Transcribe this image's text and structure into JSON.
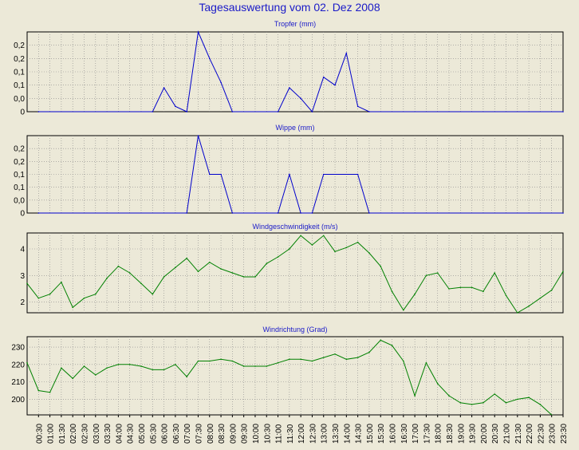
{
  "title": "Tagesauswertung vom 02. Dez 2008",
  "colors": {
    "background": "#ece9d8",
    "title": "#1a1ac8",
    "rain": "#0000cc",
    "wind": "#008000",
    "grid": "#888888"
  },
  "chart_data": [
    {
      "type": "line",
      "title": "Tropfer (mm)",
      "color": "#0000cc",
      "ylim": [
        0,
        0.3
      ],
      "yticks": [
        0,
        0.05,
        0.1,
        0.15,
        0.2,
        0.25
      ],
      "ytick_labels": [
        "0",
        "0,0",
        "0,1",
        "0,1",
        "0,2",
        "0,2"
      ],
      "points": [
        [
          0.5,
          0
        ],
        [
          5.5,
          0
        ],
        [
          6,
          0.09
        ],
        [
          6.5,
          0.02
        ],
        [
          7,
          0
        ],
        [
          7.5,
          0.3
        ],
        [
          8,
          0.2
        ],
        [
          8.5,
          0.11
        ],
        [
          9,
          0
        ],
        [
          11,
          0
        ],
        [
          11.5,
          0.09
        ],
        [
          12,
          0.05
        ],
        [
          12.5,
          0
        ],
        [
          13,
          0.13
        ],
        [
          13.5,
          0.1
        ],
        [
          14,
          0.22
        ],
        [
          14.5,
          0.02
        ],
        [
          15,
          0
        ],
        [
          23.5,
          0
        ]
      ]
    },
    {
      "type": "line",
      "title": "Wippe (mm)",
      "color": "#0000cc",
      "ylim": [
        0,
        0.3
      ],
      "yticks": [
        0,
        0.05,
        0.1,
        0.15,
        0.2,
        0.25
      ],
      "ytick_labels": [
        "0",
        "0,0",
        "0,1",
        "0,1",
        "0,2",
        "0,2"
      ],
      "points": [
        [
          0.5,
          0
        ],
        [
          7,
          0
        ],
        [
          7.5,
          0.3
        ],
        [
          8,
          0.15
        ],
        [
          8.5,
          0.15
        ],
        [
          9,
          0
        ],
        [
          11,
          0
        ],
        [
          11.5,
          0.15
        ],
        [
          12,
          0
        ],
        [
          12.5,
          0
        ],
        [
          13,
          0.15
        ],
        [
          14.5,
          0.15
        ],
        [
          15,
          0
        ],
        [
          23.5,
          0
        ]
      ]
    },
    {
      "type": "line",
      "title": "Windgeschwindigkeit (m/s)",
      "color": "#008000",
      "ylim": [
        1.6,
        4.6
      ],
      "yticks": [
        2,
        3,
        4
      ],
      "ytick_labels": [
        "2",
        "3",
        "4"
      ],
      "points": [
        [
          0,
          2.7
        ],
        [
          0.5,
          2.15
        ],
        [
          1,
          2.3
        ],
        [
          1.5,
          2.75
        ],
        [
          2,
          1.8
        ],
        [
          2.5,
          2.15
        ],
        [
          3,
          2.3
        ],
        [
          3.5,
          2.9
        ],
        [
          4,
          3.35
        ],
        [
          4.5,
          3.1
        ],
        [
          5,
          2.7
        ],
        [
          5.5,
          2.3
        ],
        [
          6,
          2.95
        ],
        [
          6.5,
          3.3
        ],
        [
          7,
          3.65
        ],
        [
          7.5,
          3.15
        ],
        [
          8,
          3.5
        ],
        [
          8.5,
          3.25
        ],
        [
          9,
          3.1
        ],
        [
          9.5,
          2.95
        ],
        [
          10,
          2.95
        ],
        [
          10.5,
          3.45
        ],
        [
          11,
          3.7
        ],
        [
          11.5,
          4.0
        ],
        [
          12,
          4.5
        ],
        [
          12.5,
          4.15
        ],
        [
          13,
          4.5
        ],
        [
          13.5,
          3.9
        ],
        [
          14,
          4.05
        ],
        [
          14.5,
          4.25
        ],
        [
          15,
          3.85
        ],
        [
          15.5,
          3.35
        ],
        [
          16,
          2.4
        ],
        [
          16.5,
          1.7
        ],
        [
          17,
          2.3
        ],
        [
          17.5,
          3.0
        ],
        [
          18,
          3.1
        ],
        [
          18.5,
          2.5
        ],
        [
          19,
          2.55
        ],
        [
          19.5,
          2.55
        ],
        [
          20,
          2.4
        ],
        [
          20.5,
          3.1
        ],
        [
          21,
          2.25
        ],
        [
          21.5,
          1.6
        ],
        [
          22,
          1.85
        ],
        [
          22.5,
          2.15
        ],
        [
          23,
          2.45
        ],
        [
          23.5,
          3.15
        ]
      ]
    },
    {
      "type": "line",
      "title": "Windrichtung (Grad)",
      "color": "#008000",
      "ylim": [
        191,
        236
      ],
      "yticks": [
        200,
        210,
        220,
        230
      ],
      "ytick_labels": [
        "200",
        "210",
        "220",
        "230"
      ],
      "points": [
        [
          0,
          221
        ],
        [
          0.5,
          205
        ],
        [
          1,
          204
        ],
        [
          1.5,
          218
        ],
        [
          2,
          212
        ],
        [
          2.5,
          219
        ],
        [
          3,
          214
        ],
        [
          3.5,
          218
        ],
        [
          4,
          220
        ],
        [
          4.5,
          220
        ],
        [
          5,
          219
        ],
        [
          5.5,
          217
        ],
        [
          6,
          217
        ],
        [
          6.5,
          220
        ],
        [
          7,
          213
        ],
        [
          7.5,
          222
        ],
        [
          8,
          222
        ],
        [
          8.5,
          223
        ],
        [
          9,
          222
        ],
        [
          9.5,
          219
        ],
        [
          10,
          219
        ],
        [
          10.5,
          219
        ],
        [
          11,
          221
        ],
        [
          11.5,
          223
        ],
        [
          12,
          223
        ],
        [
          12.5,
          222
        ],
        [
          13,
          224
        ],
        [
          13.5,
          226
        ],
        [
          14,
          223
        ],
        [
          14.5,
          224
        ],
        [
          15,
          227
        ],
        [
          15.5,
          234
        ],
        [
          16,
          231
        ],
        [
          16.5,
          222
        ],
        [
          17,
          202
        ],
        [
          17.5,
          221
        ],
        [
          18,
          209
        ],
        [
          18.5,
          202
        ],
        [
          19,
          198
        ],
        [
          19.5,
          197
        ],
        [
          20,
          198
        ],
        [
          20.5,
          203
        ],
        [
          21,
          198
        ],
        [
          21.5,
          200
        ],
        [
          22,
          201
        ],
        [
          22.5,
          197
        ],
        [
          23,
          191
        ]
      ]
    }
  ],
  "x_labels": [
    "00:30",
    "01:00",
    "01:30",
    "02:00",
    "02:30",
    "03:00",
    "03:30",
    "04:00",
    "04:30",
    "05:00",
    "05:30",
    "06:00",
    "06:30",
    "07:00",
    "07:30",
    "08:00",
    "08:30",
    "09:00",
    "09:30",
    "10:00",
    "10:30",
    "11:00",
    "11:30",
    "12:00",
    "12:30",
    "13:00",
    "13:30",
    "14:00",
    "14:30",
    "15:00",
    "15:30",
    "16:00",
    "16:30",
    "17:00",
    "17:30",
    "18:00",
    "18:30",
    "19:00",
    "19:30",
    "20:00",
    "20:30",
    "21:00",
    "21:30",
    "22:00",
    "22:30",
    "23:00",
    "23:30"
  ]
}
